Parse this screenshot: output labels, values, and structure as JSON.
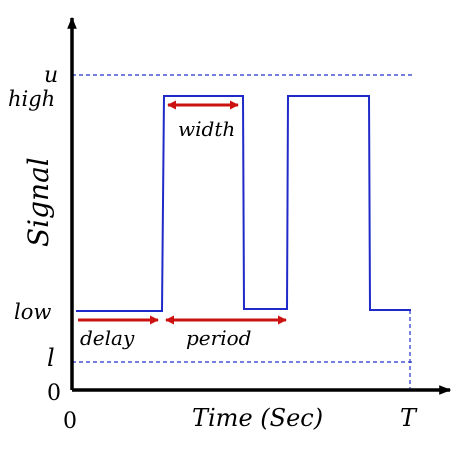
{
  "axis_labels": {
    "y": "Signal",
    "x": "Time (Sec)"
  },
  "y_ticks": {
    "u": "u",
    "high": "high",
    "low": "low",
    "l": "l",
    "zero": "0"
  },
  "x_ticks": {
    "zero": "0",
    "T": "T"
  },
  "annotations": {
    "width": "width",
    "delay": "delay",
    "period": "period"
  },
  "colors": {
    "signal": "#1f2ac8",
    "arrow": "#cc1111",
    "axis": "#000000",
    "dashed": "#2233cc"
  }
}
